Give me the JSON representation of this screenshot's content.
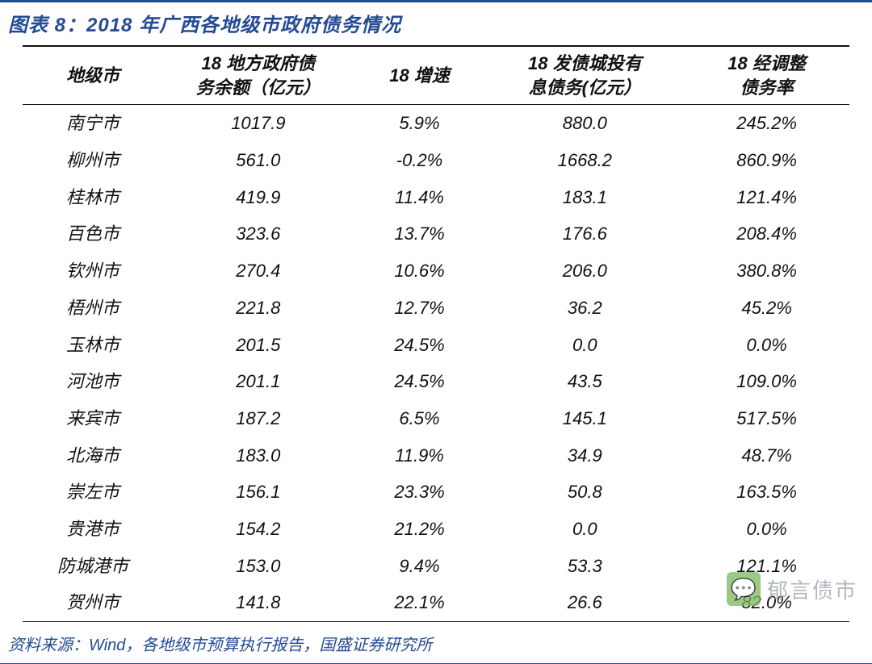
{
  "title": "图表 8：2018 年广西各地级市政府债务情况",
  "source": "资料来源：Wind，各地级市预算执行报告，国盛证券研究所",
  "watermark": {
    "icon": "💬",
    "text": "郁言债市"
  },
  "colors": {
    "accent": "#234b95",
    "text": "#111111",
    "background": "#ffffff"
  },
  "table": {
    "type": "table",
    "columns": [
      {
        "key": "city",
        "l1": "地级市",
        "l2": ""
      },
      {
        "key": "debt",
        "l1": "18 地方政府债",
        "l2": "务余额（亿元）"
      },
      {
        "key": "grow",
        "l1": "18 增速",
        "l2": ""
      },
      {
        "key": "bond",
        "l1": "18 发债城投有",
        "l2": "息债务(亿元）"
      },
      {
        "key": "rate",
        "l1": "18 经调整",
        "l2": "债务率"
      }
    ],
    "rows": [
      {
        "city": "南宁市",
        "debt": "1017.9",
        "grow": "5.9%",
        "bond": "880.0",
        "rate": "245.2%"
      },
      {
        "city": "柳州市",
        "debt": "561.0",
        "grow": "-0.2%",
        "bond": "1668.2",
        "rate": "860.9%"
      },
      {
        "city": "桂林市",
        "debt": "419.9",
        "grow": "11.4%",
        "bond": "183.1",
        "rate": "121.4%"
      },
      {
        "city": "百色市",
        "debt": "323.6",
        "grow": "13.7%",
        "bond": "176.6",
        "rate": "208.4%"
      },
      {
        "city": "钦州市",
        "debt": "270.4",
        "grow": "10.6%",
        "bond": "206.0",
        "rate": "380.8%"
      },
      {
        "city": "梧州市",
        "debt": "221.8",
        "grow": "12.7%",
        "bond": "36.2",
        "rate": "45.2%"
      },
      {
        "city": "玉林市",
        "debt": "201.5",
        "grow": "24.5%",
        "bond": "0.0",
        "rate": "0.0%"
      },
      {
        "city": "河池市",
        "debt": "201.1",
        "grow": "24.5%",
        "bond": "43.5",
        "rate": "109.0%"
      },
      {
        "city": "来宾市",
        "debt": "187.2",
        "grow": "6.5%",
        "bond": "145.1",
        "rate": "517.5%"
      },
      {
        "city": "北海市",
        "debt": "183.0",
        "grow": "11.9%",
        "bond": "34.9",
        "rate": "48.7%"
      },
      {
        "city": "崇左市",
        "debt": "156.1",
        "grow": "23.3%",
        "bond": "50.8",
        "rate": "163.5%"
      },
      {
        "city": "贵港市",
        "debt": "154.2",
        "grow": "21.2%",
        "bond": "0.0",
        "rate": "0.0%"
      },
      {
        "city": "防城港市",
        "debt": "153.0",
        "grow": "9.4%",
        "bond": "53.3",
        "rate": "121.1%"
      },
      {
        "city": "贺州市",
        "debt": "141.8",
        "grow": "22.1%",
        "bond": "26.6",
        "rate": "82.0%"
      }
    ]
  }
}
